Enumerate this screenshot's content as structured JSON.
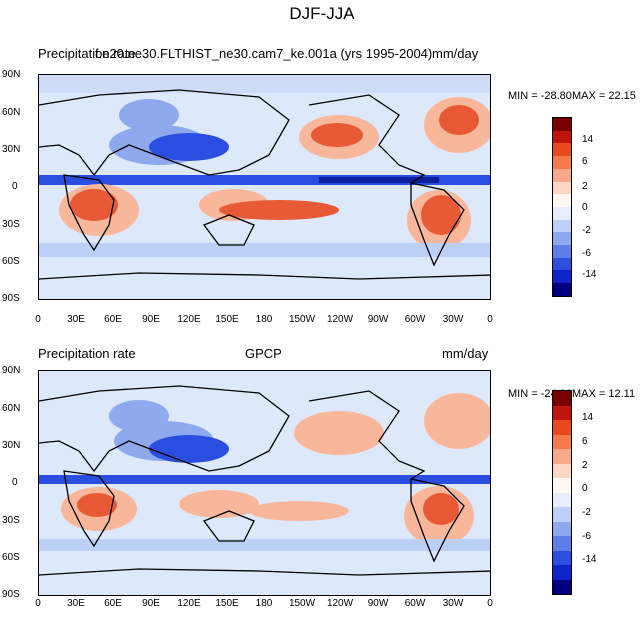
{
  "figure_title": "DJF-JJA",
  "panels": [
    {
      "left_label": "Precipitation rate",
      "center_label": "f.e20.ne30.FLTHIST_ne30.cam7_ke.001a (yrs 1995-2004)",
      "right_label": "mm/day",
      "min_label": "MIN = -28.80",
      "max_label": "MAX =  22.15"
    },
    {
      "left_label": "Precipitation rate",
      "center_label": "GPCP",
      "right_label": "mm/day",
      "min_label": "MIN = -24.01",
      "max_label": "MAX =  12.11"
    }
  ],
  "lat_ticks": [
    "90N",
    "60N",
    "30N",
    "0",
    "30S",
    "60S",
    "90S"
  ],
  "lon_ticks": [
    "0",
    "30E",
    "60E",
    "90E",
    "120E",
    "150E",
    "180",
    "150W",
    "120W",
    "90W",
    "60W",
    "30W",
    "0"
  ],
  "colorbar_labels": [
    "14",
    "6",
    "2",
    "0",
    "-2",
    "-6",
    "-14"
  ],
  "colorbar_colors": [
    "#7a0000",
    "#c0150d",
    "#e64a1c",
    "#f47a4c",
    "#f9a98a",
    "#fcd6c3",
    "#fff7f2",
    "#e6eefc",
    "#bccff6",
    "#8ea9ee",
    "#5c7ee6",
    "#2e4fde",
    "#0f24c8",
    "#000080"
  ],
  "field_colors": {
    "wet": "#e85a35",
    "moist": "#f8b79b",
    "neutral": "#dde8fb",
    "dry": "#8ea9ee",
    "verydry": "#2a4fe0",
    "extreme": "#0c1f9c"
  }
}
